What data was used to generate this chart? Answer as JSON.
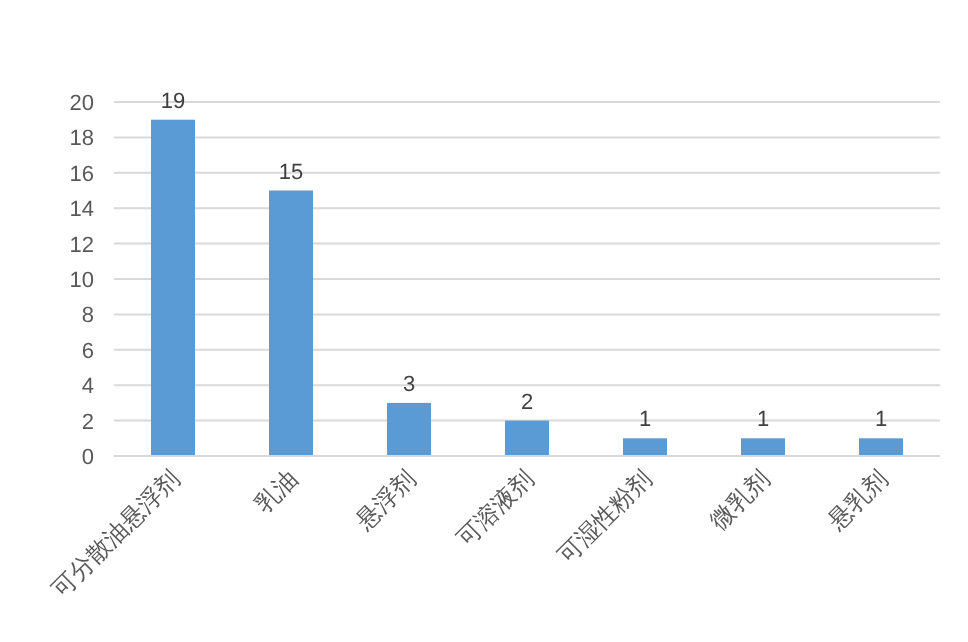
{
  "chart_data": {
    "type": "bar",
    "categories": [
      "可分散油悬浮剂",
      "乳油",
      "悬浮剂",
      "可溶液剂",
      "可湿性粉剂",
      "微乳剂",
      "悬乳剂"
    ],
    "values": [
      19,
      15,
      3,
      2,
      1,
      1,
      1
    ],
    "color": "#5b9bd5",
    "ylim": [
      0,
      20
    ],
    "yticks": [
      0,
      2,
      4,
      6,
      8,
      10,
      12,
      14,
      16,
      18,
      20
    ],
    "grid": "y",
    "data_labels": true
  }
}
